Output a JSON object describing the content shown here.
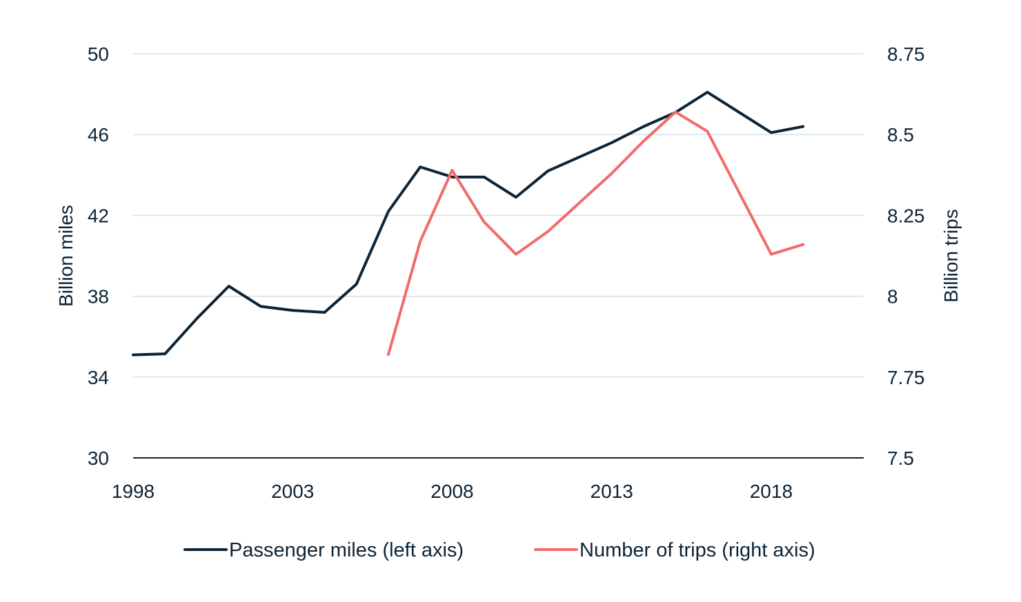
{
  "chart_data": {
    "type": "line",
    "title": "",
    "x": [
      1998,
      1999,
      2000,
      2001,
      2002,
      2003,
      2004,
      2005,
      2006,
      2007,
      2008,
      2009,
      2010,
      2011,
      2012,
      2013,
      2014,
      2015,
      2016,
      2017,
      2018,
      2019
    ],
    "x_ticks": [
      "1998",
      "2003",
      "2008",
      "2013",
      "2018"
    ],
    "xlim": [
      1998,
      2020.9
    ],
    "left_axis": {
      "label": "Billion miles",
      "ticks": [
        "50",
        "46",
        "42",
        "38",
        "34",
        "30"
      ],
      "tick_values": [
        50,
        46,
        42,
        38,
        34,
        30
      ],
      "range": [
        30,
        50
      ]
    },
    "right_axis": {
      "label": "Billion trips",
      "ticks": [
        "8.75",
        "8.5",
        "8.25",
        "8",
        "7.75",
        "7.5"
      ],
      "tick_values": [
        8.75,
        8.5,
        8.25,
        8,
        7.75,
        7.5
      ],
      "range": [
        7.5,
        8.75
      ]
    },
    "series": [
      {
        "name": "Passenger miles (left axis)",
        "axis": "left",
        "color": "#0d2436",
        "values": [
          35.1,
          35.15,
          36.9,
          38.5,
          37.5,
          37.3,
          37.2,
          38.6,
          42.2,
          44.4,
          43.9,
          43.9,
          42.9,
          44.2,
          44.9,
          45.6,
          46.4,
          47.1,
          48.1,
          47.1,
          46.1,
          46.4
        ]
      },
      {
        "name": "Number of trips (right axis)",
        "axis": "right",
        "color": "#f26b6b",
        "values": [
          null,
          null,
          null,
          null,
          null,
          null,
          null,
          null,
          7.82,
          8.17,
          8.39,
          8.23,
          8.13,
          8.2,
          8.29,
          8.38,
          8.48,
          8.57,
          8.51,
          8.32,
          8.13,
          8.16
        ]
      }
    ],
    "legend": [
      {
        "label": "Passenger miles (left axis)",
        "color": "#0d2436"
      },
      {
        "label": "Number of trips (right axis)",
        "color": "#f26b6b"
      }
    ],
    "legend_position": "bottom",
    "grid": true,
    "colors": {
      "grid": "#cfe3f1",
      "baseline": "#0d2436",
      "text": "#0d2436"
    }
  }
}
